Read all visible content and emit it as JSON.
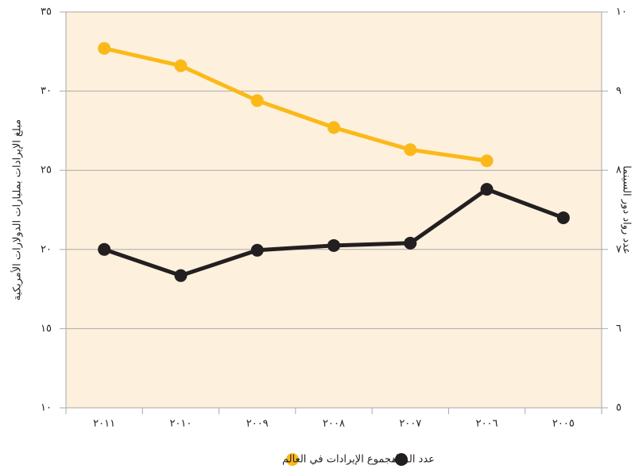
{
  "chart_data": {
    "type": "line",
    "ylabel": "مبلغ الإيرادات بمليارات الدولارات الأمريكية",
    "y2label": "عدد رواد دور السينما",
    "categories": [
      "٢٠١١",
      "٢٠١٠",
      "٢٠٠٩",
      "٢٠٠٨",
      "٢٠٠٧",
      "٢٠٠٦",
      "٢٠٠٥"
    ],
    "series": [
      {
        "name": "مجموع الإيرادات في العالم",
        "color": "#fbb919",
        "values": [
          32.7,
          31.6,
          29.4,
          27.7,
          26.3,
          25.6,
          null
        ]
      },
      {
        "name": "عدد الرواد",
        "color": "#231f20",
        "axis": "y2",
        "values": [
          7.0,
          6.67,
          6.99,
          7.05,
          7.08,
          7.76,
          7.4
        ]
      }
    ],
    "ylim": [
      10,
      35
    ],
    "yticks": [
      {
        "value": 10,
        "label": "١٠"
      },
      {
        "value": 15,
        "label": "١٥"
      },
      {
        "value": 20,
        "label": "٢٠"
      },
      {
        "value": 25,
        "label": "٢٥"
      },
      {
        "value": 30,
        "label": "٣٠"
      },
      {
        "value": 35,
        "label": "٣٥"
      }
    ],
    "y2lim": [
      5,
      10
    ],
    "y2ticks": [
      {
        "value": 5,
        "label": "٥"
      },
      {
        "value": 6,
        "label": "٦"
      },
      {
        "value": 7,
        "label": "٧"
      },
      {
        "value": 8,
        "label": "٨"
      },
      {
        "value": 9,
        "label": "٩"
      },
      {
        "value": 10,
        "label": "١٠"
      }
    ],
    "grid": true,
    "background": "#fdf0dc"
  }
}
